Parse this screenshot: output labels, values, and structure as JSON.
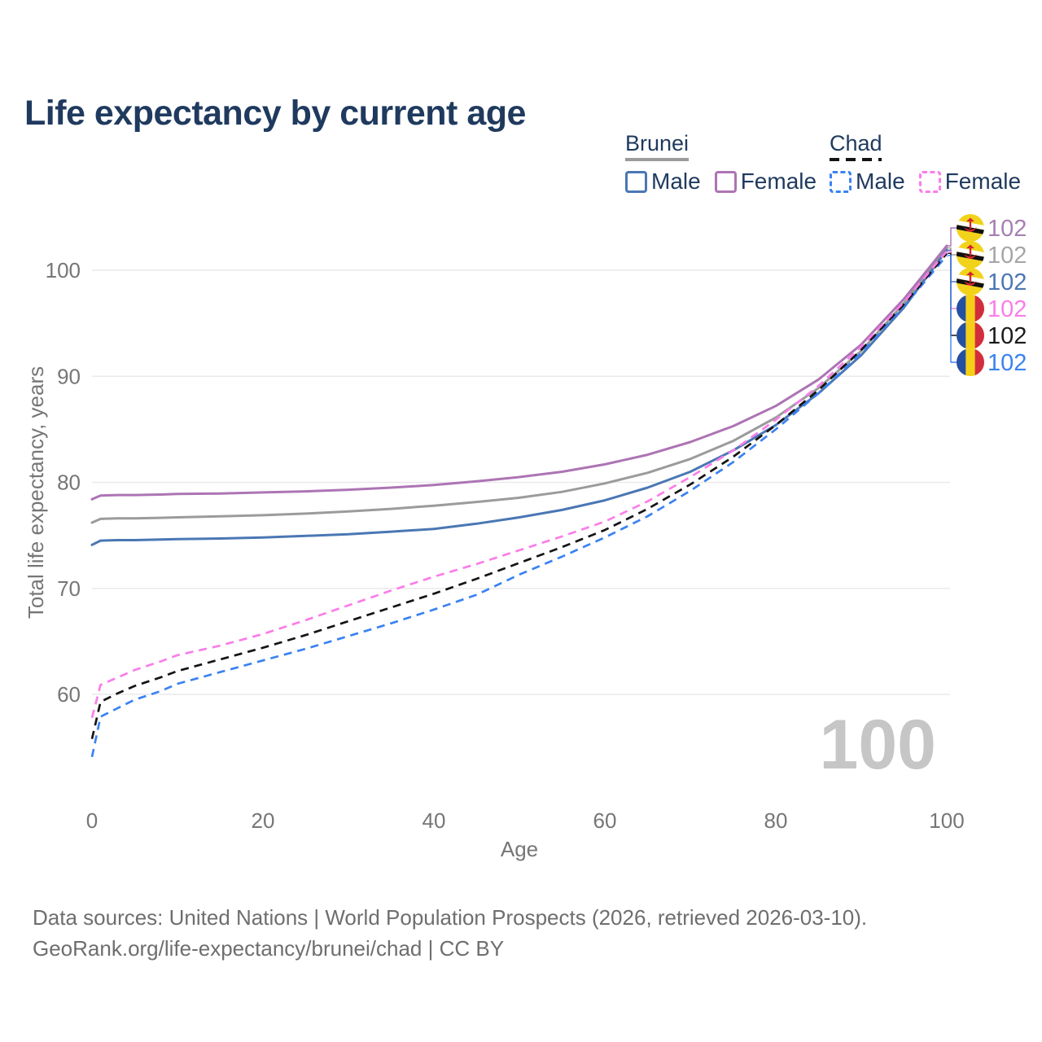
{
  "title": "Life expectancy by current age",
  "legend": {
    "brunei": {
      "label": "Brunei",
      "male_label": "Male",
      "female_label": "Female"
    },
    "chad": {
      "label": "Chad",
      "male_label": "Male",
      "female_label": "Female"
    }
  },
  "axes": {
    "y_title": "Total life expectancy, years",
    "x_title": "Age"
  },
  "watermark": "100",
  "source_line1": "Data sources: United Nations | World Population Prospects (2026, retrieved 2026-03-10).",
  "source_line2": "GeoRank.org/life-expectancy/brunei/chad | CC BY",
  "colors": {
    "title": "#1f3a5e",
    "legend_text": "#1f3a5e",
    "axis_text": "#767676",
    "grid": "#eaeaea",
    "source_text": "#6e6e6e",
    "watermark": "#c6c6c6"
  },
  "chart_data": {
    "type": "line",
    "title": "Life expectancy by current age",
    "xlabel": "Age",
    "ylabel": "Total life expectancy, years",
    "xlim": [
      0,
      100
    ],
    "ylim": [
      54,
      103
    ],
    "x_ticks": [
      0,
      20,
      40,
      60,
      80,
      100
    ],
    "y_ticks": [
      60,
      70,
      80,
      90,
      100
    ],
    "grid": "horizontal-only",
    "legend_position": "top-right",
    "x": [
      0,
      1,
      3,
      5,
      8,
      10,
      15,
      20,
      25,
      30,
      35,
      40,
      45,
      50,
      55,
      60,
      65,
      70,
      75,
      80,
      85,
      90,
      95,
      100
    ],
    "series": [
      {
        "id": "brunei-female",
        "name": "Brunei Female",
        "country": "Brunei",
        "sex": "female",
        "color": "#ad74b4",
        "label_color": "#a87fb2",
        "dash": false,
        "flag": "brunei",
        "end_label": "102",
        "values": [
          78.4,
          78.75,
          78.8,
          78.8,
          78.85,
          78.9,
          78.95,
          79.05,
          79.15,
          79.3,
          79.5,
          79.75,
          80.1,
          80.5,
          81.0,
          81.7,
          82.6,
          83.8,
          85.3,
          87.2,
          89.7,
          93.0,
          97.3,
          102.3
        ]
      },
      {
        "id": "brunei-total",
        "name": "Brunei Both sexes",
        "country": "Brunei",
        "sex": "both",
        "color": "#9b9b9b",
        "label_color": "#a6a6a6",
        "dash": false,
        "flag": "brunei",
        "end_label": "102",
        "values": [
          76.2,
          76.55,
          76.6,
          76.6,
          76.65,
          76.7,
          76.8,
          76.9,
          77.05,
          77.25,
          77.5,
          77.8,
          78.15,
          78.55,
          79.1,
          79.9,
          80.9,
          82.2,
          83.9,
          86.1,
          88.9,
          92.4,
          96.9,
          102.1
        ]
      },
      {
        "id": "brunei-male",
        "name": "Brunei Male",
        "country": "Brunei",
        "sex": "male",
        "color": "#4a77b4",
        "label_color": "#4a77b4",
        "dash": false,
        "flag": "brunei",
        "end_label": "102",
        "values": [
          74.1,
          74.5,
          74.55,
          74.55,
          74.6,
          74.65,
          74.7,
          74.8,
          74.95,
          75.1,
          75.35,
          75.6,
          76.1,
          76.7,
          77.4,
          78.3,
          79.5,
          81.0,
          83.0,
          85.4,
          88.4,
          92.0,
          96.5,
          101.9
        ]
      },
      {
        "id": "chad-female",
        "name": "Chad Female",
        "country": "Chad",
        "sex": "female",
        "color": "#fa7de9",
        "label_color": "#fa7de9",
        "dash": true,
        "flag": "chad",
        "end_label": "102",
        "values": [
          57.8,
          60.9,
          61.6,
          62.3,
          63.1,
          63.7,
          64.6,
          65.7,
          67.0,
          68.4,
          69.8,
          71.1,
          72.3,
          73.6,
          74.9,
          76.3,
          78.2,
          80.5,
          83.0,
          85.9,
          89.1,
          92.8,
          97.0,
          101.8
        ]
      },
      {
        "id": "chad-total",
        "name": "Chad Both sexes",
        "country": "Chad",
        "sex": "both",
        "color": "#141414",
        "label_color": "#1a1a1a",
        "dash": true,
        "flag": "chad",
        "end_label": "102",
        "values": [
          55.8,
          59.3,
          60.1,
          60.8,
          61.6,
          62.2,
          63.3,
          64.4,
          65.6,
          66.9,
          68.2,
          69.5,
          70.9,
          72.4,
          73.9,
          75.5,
          77.5,
          79.8,
          82.4,
          85.4,
          88.7,
          92.5,
          96.8,
          101.6
        ]
      },
      {
        "id": "chad-male",
        "name": "Chad Male",
        "country": "Chad",
        "sex": "male",
        "color": "#3a82f2",
        "label_color": "#3a82f2",
        "dash": true,
        "flag": "chad",
        "end_label": "102",
        "values": [
          54.1,
          57.9,
          58.7,
          59.5,
          60.3,
          61.0,
          62.1,
          63.2,
          64.3,
          65.5,
          66.7,
          68.0,
          69.4,
          71.3,
          73.0,
          74.8,
          76.8,
          79.2,
          81.9,
          85.0,
          88.4,
          92.2,
          96.6,
          101.4
        ]
      }
    ]
  }
}
